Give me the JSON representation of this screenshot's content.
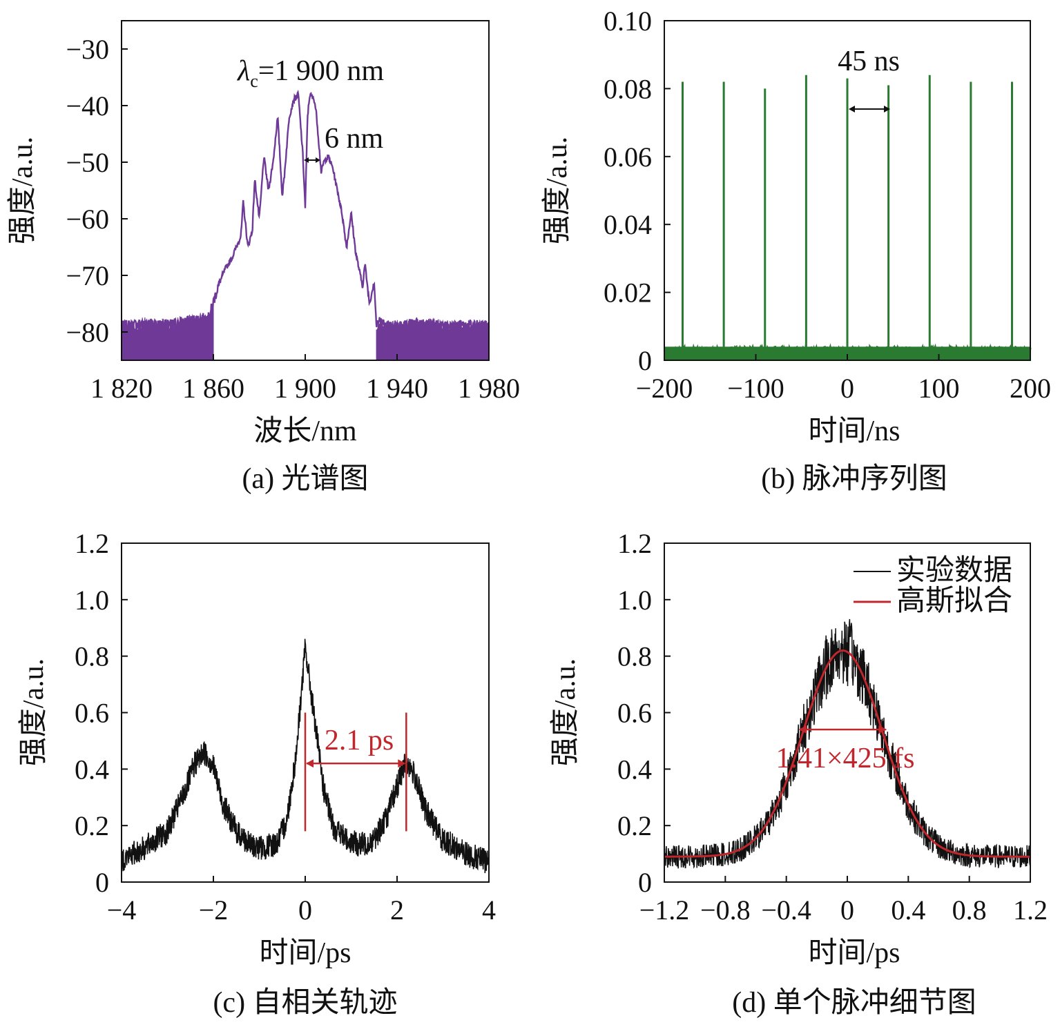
{
  "colors": {
    "spectrum": "#6f3a97",
    "pulse_train": "#2a7a32",
    "autocorr": "#111111",
    "fit": "#c0272d",
    "annotation_red": "#c0272d"
  },
  "chart_data": [
    {
      "panel": "a",
      "type": "line",
      "caption": "(a) 光谱图",
      "xlabel": "波长/nm",
      "ylabel": "强度/a.u.",
      "xlim": [
        1820,
        1980
      ],
      "ylim": [
        -85,
        -25
      ],
      "xticks": [
        1820,
        1860,
        1900,
        1940,
        1980
      ],
      "xtick_labels": [
        "1 820",
        "1 860",
        "1 900",
        "1 940",
        "1 980"
      ],
      "yticks": [
        -30,
        -40,
        -50,
        -60,
        -70,
        -80
      ],
      "ytick_labels": [
        "−30",
        "−40",
        "−50",
        "−60",
        "−70",
        "−80"
      ],
      "center_label": "λc=1 900 nm",
      "center_symbol": "λ",
      "center_sub": "c",
      "center_rest": "=1 900 nm",
      "bandwidth_label": "6 nm",
      "series": [
        {
          "x": [
            1820,
            1830,
            1840,
            1850,
            1858,
            1862,
            1865,
            1868,
            1872,
            1873,
            1875,
            1877,
            1878,
            1880,
            1882,
            1884,
            1886,
            1888,
            1890,
            1891,
            1893,
            1895,
            1897,
            1899,
            1900,
            1901,
            1902,
            1904,
            1905,
            1907,
            1908,
            1910,
            1912,
            1914,
            1916,
            1918,
            1920,
            1922,
            1925,
            1926,
            1928,
            1930,
            1931,
            1932,
            1934,
            1940,
            1950,
            1960,
            1970,
            1980
          ],
          "y": [
            -79,
            -78.5,
            -78.8,
            -78,
            -77.5,
            -72,
            -69,
            -67,
            -63,
            -57,
            -65,
            -62,
            -53,
            -60,
            -49,
            -55,
            -50,
            -42,
            -56,
            -52,
            -42,
            -39,
            -38,
            -49,
            -58,
            -42,
            -38,
            -39,
            -42,
            -52,
            -50,
            -49,
            -51,
            -55,
            -59,
            -65,
            -59,
            -66,
            -72,
            -68,
            -75,
            -71,
            -79,
            -78,
            -78.5,
            -79,
            -78.5,
            -79,
            -78.8,
            -79
          ]
        }
      ]
    },
    {
      "panel": "b",
      "type": "line",
      "caption": "(b) 脉冲序列图",
      "xlabel": "时间/ns",
      "ylabel": "强度/a.u.",
      "xlim": [
        -200,
        200
      ],
      "ylim": [
        0,
        0.1
      ],
      "xticks": [
        -200,
        -100,
        0,
        100,
        200
      ],
      "xtick_labels": [
        "−200",
        "−100",
        "0",
        "100",
        "200"
      ],
      "yticks": [
        0,
        0.02,
        0.04,
        0.06,
        0.08,
        0.1
      ],
      "ytick_labels": [
        "0",
        "0.02",
        "0.04",
        "0.06",
        "0.08",
        "0.10"
      ],
      "period_label": "45 ns",
      "baseline": 0.003,
      "pulse_times": [
        -180,
        -135,
        -90,
        -45,
        0,
        45,
        90,
        135,
        180
      ],
      "pulse_heights": [
        0.082,
        0.082,
        0.08,
        0.084,
        0.083,
        0.081,
        0.084,
        0.082,
        0.082
      ]
    },
    {
      "panel": "c",
      "type": "line",
      "caption": "(c) 自相关轨迹",
      "xlabel": "时间/ps",
      "ylabel": "强度/a.u.",
      "xlim": [
        -4,
        4
      ],
      "ylim": [
        0,
        1.2
      ],
      "xticks": [
        -4,
        -2,
        0,
        2,
        4
      ],
      "xtick_labels": [
        "−4",
        "−2",
        "0",
        "2",
        "4"
      ],
      "yticks": [
        0,
        0.2,
        0.4,
        0.6,
        0.8,
        1.0,
        1.2
      ],
      "ytick_labels": [
        "0",
        "0.2",
        "0.4",
        "0.6",
        "0.8",
        "1.0",
        "1.2"
      ],
      "separation_label": "2.1 ps",
      "marker_x": [
        0,
        2.2
      ],
      "series": [
        {
          "x": [
            -4.0,
            -3.5,
            -3.0,
            -2.6,
            -2.4,
            -2.2,
            -2.0,
            -1.8,
            -1.5,
            -1.2,
            -0.9,
            -0.6,
            -0.4,
            -0.2,
            0,
            0.2,
            0.4,
            0.6,
            0.9,
            1.2,
            1.5,
            1.8,
            2.0,
            2.2,
            2.4,
            2.6,
            3.0,
            3.5,
            4.0
          ],
          "y": [
            0.08,
            0.12,
            0.18,
            0.33,
            0.42,
            0.46,
            0.41,
            0.28,
            0.18,
            0.13,
            0.12,
            0.14,
            0.22,
            0.45,
            0.83,
            0.58,
            0.33,
            0.2,
            0.15,
            0.13,
            0.15,
            0.24,
            0.34,
            0.43,
            0.37,
            0.26,
            0.15,
            0.1,
            0.07
          ],
          "noise": 0.045
        }
      ]
    },
    {
      "panel": "d",
      "type": "line",
      "caption": "(d) 单个脉冲细节图",
      "xlabel": "时间/ps",
      "ylabel": "强度/a.u.",
      "xlim": [
        -1.2,
        1.2
      ],
      "ylim": [
        0,
        1.2
      ],
      "xticks": [
        -1.2,
        -0.8,
        -0.4,
        0,
        0.4,
        0.8,
        1.2
      ],
      "xtick_labels": [
        "−1.2",
        "−0.8",
        "−0.4",
        "0",
        "0.4",
        "0.8",
        "1.2"
      ],
      "yticks": [
        0,
        0.2,
        0.4,
        0.6,
        0.8,
        1.0,
        1.2
      ],
      "ytick_labels": [
        "0",
        "0.2",
        "0.4",
        "0.6",
        "0.8",
        "1.0",
        "1.2"
      ],
      "fwhm_label": "1.41×425 fs",
      "fwhm_x": [
        -0.32,
        0.26
      ],
      "fwhm_y": 0.54,
      "legend": [
        "实验数据",
        "高斯拟合"
      ],
      "legend_position": "top-right",
      "series": [
        {
          "name": "实验数据",
          "gaussian": {
            "amplitude": 0.73,
            "center": -0.03,
            "sigma": 0.26,
            "offset": 0.09
          },
          "noise": 0.07
        },
        {
          "name": "高斯拟合",
          "gaussian": {
            "amplitude": 0.73,
            "center": -0.03,
            "sigma": 0.26,
            "offset": 0.09
          }
        }
      ]
    }
  ]
}
